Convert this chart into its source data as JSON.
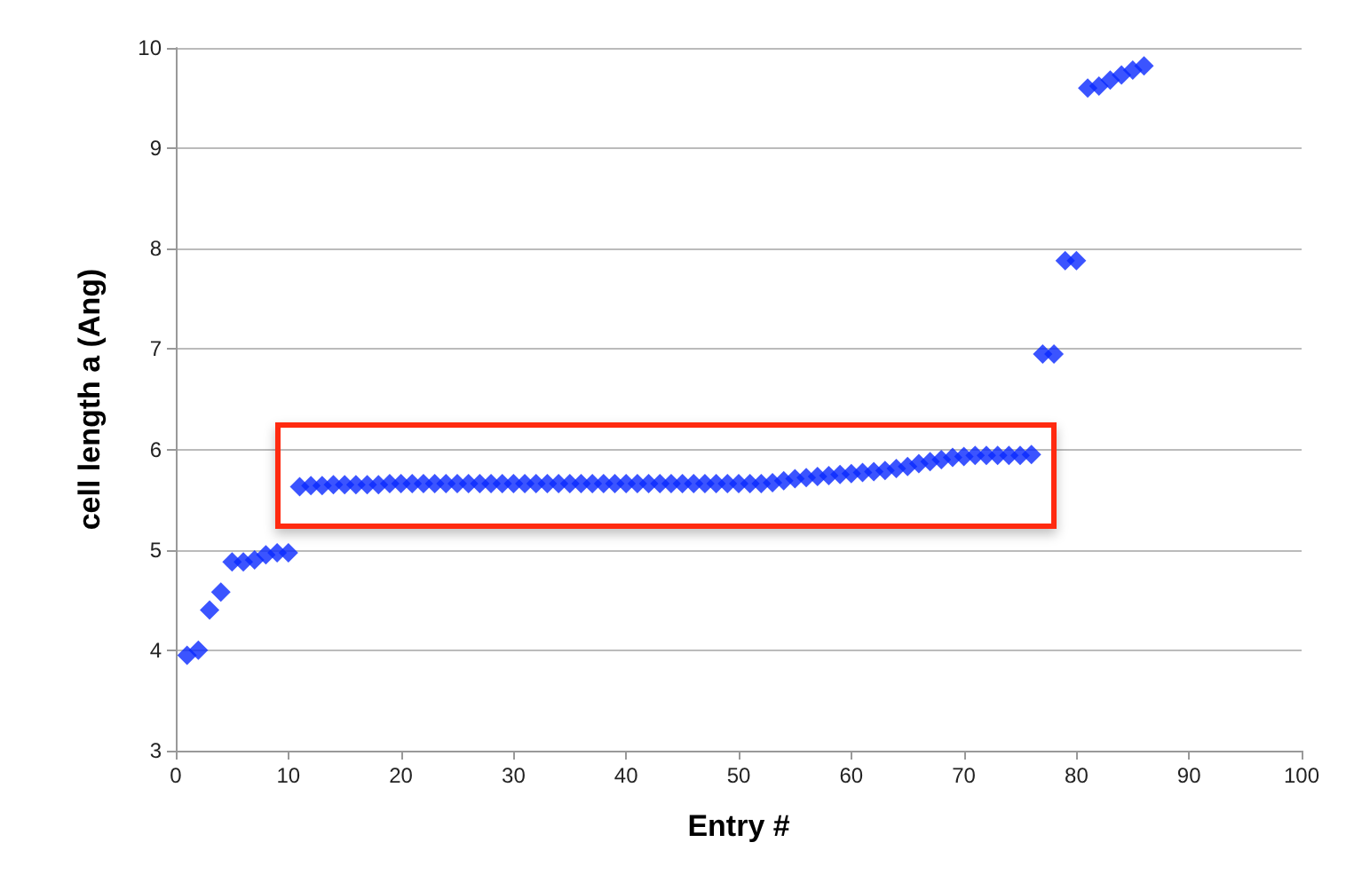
{
  "chart_data": {
    "type": "scatter",
    "xlabel": "Entry #",
    "ylabel": "cell length a (Ang)",
    "x": [
      1,
      2,
      3,
      4,
      5,
      6,
      7,
      8,
      9,
      10,
      11,
      12,
      13,
      14,
      15,
      16,
      17,
      18,
      19,
      20,
      21,
      22,
      23,
      24,
      25,
      26,
      27,
      28,
      29,
      30,
      31,
      32,
      33,
      34,
      35,
      36,
      37,
      38,
      39,
      40,
      41,
      42,
      43,
      44,
      45,
      46,
      47,
      48,
      49,
      50,
      51,
      52,
      53,
      54,
      55,
      56,
      57,
      58,
      59,
      60,
      61,
      62,
      63,
      64,
      65,
      66,
      67,
      68,
      69,
      70,
      71,
      72,
      73,
      74,
      75,
      76,
      77,
      78,
      79,
      80,
      81,
      82,
      83,
      84,
      85,
      86
    ],
    "values": [
      3.95,
      4.0,
      4.4,
      4.58,
      4.88,
      4.88,
      4.9,
      4.95,
      4.97,
      4.97,
      5.63,
      5.64,
      5.64,
      5.65,
      5.65,
      5.65,
      5.65,
      5.65,
      5.66,
      5.66,
      5.66,
      5.66,
      5.66,
      5.66,
      5.66,
      5.66,
      5.66,
      5.66,
      5.66,
      5.66,
      5.66,
      5.66,
      5.66,
      5.66,
      5.66,
      5.66,
      5.66,
      5.66,
      5.66,
      5.66,
      5.66,
      5.66,
      5.66,
      5.66,
      5.66,
      5.66,
      5.66,
      5.66,
      5.66,
      5.66,
      5.66,
      5.66,
      5.67,
      5.69,
      5.71,
      5.72,
      5.73,
      5.74,
      5.75,
      5.76,
      5.77,
      5.78,
      5.79,
      5.81,
      5.83,
      5.86,
      5.88,
      5.9,
      5.92,
      5.93,
      5.94,
      5.94,
      5.94,
      5.94,
      5.94,
      5.95,
      6.95,
      6.95,
      7.88,
      7.88,
      9.6,
      9.62,
      9.68,
      9.73,
      9.78,
      9.82
    ],
    "color": "#0a29ff",
    "marker": "diamond",
    "xlim": [
      0,
      100
    ],
    "xticks": [
      0,
      10,
      20,
      30,
      40,
      50,
      60,
      70,
      80,
      90,
      100
    ],
    "ylim": [
      3,
      10
    ],
    "yticks": [
      3,
      4,
      5,
      6,
      7,
      8,
      9,
      10
    ],
    "grid": "y"
  }
}
